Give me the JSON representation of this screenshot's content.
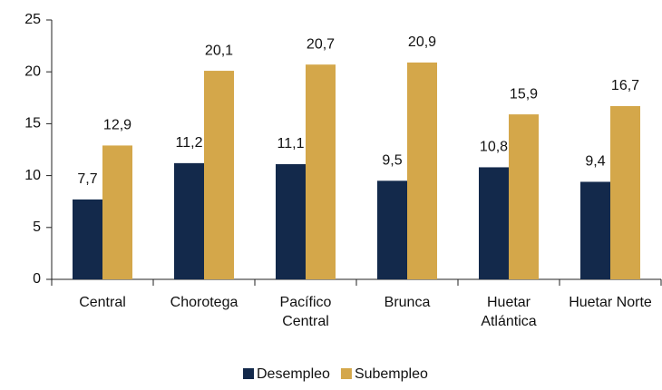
{
  "chart_data": {
    "type": "bar",
    "categories": [
      "Central",
      "Chorotega",
      "Pacífico\nCentral",
      "Brunca",
      "Huetar\nAtlántica",
      "Huetar Norte"
    ],
    "series": [
      {
        "name": "Desempleo",
        "color": "#13294b",
        "values": [
          7.7,
          11.2,
          11.1,
          9.5,
          10.8,
          9.4
        ],
        "value_labels": [
          "7,7",
          "11,2",
          "11,1",
          "9,5",
          "10,8",
          "9,4"
        ]
      },
      {
        "name": "Subempleo",
        "color": "#d4a74a",
        "values": [
          12.9,
          20.1,
          20.7,
          20.9,
          15.9,
          16.7
        ],
        "value_labels": [
          "12,9",
          "20,1",
          "20,7",
          "20,9",
          "15,9",
          "16,7"
        ]
      }
    ],
    "ylim": [
      0,
      25
    ],
    "yticks": [
      0,
      5,
      10,
      15,
      20,
      25
    ],
    "grid": false,
    "legend": "bottom"
  }
}
